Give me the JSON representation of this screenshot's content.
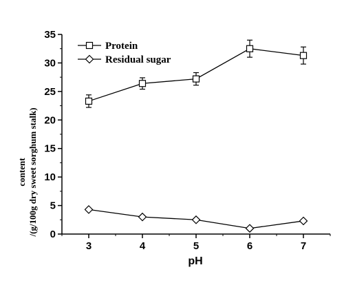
{
  "chart_data": {
    "type": "line",
    "x": [
      3,
      4,
      5,
      6,
      7
    ],
    "xlabel": "pH",
    "ylabel_line1": "content",
    "ylabel_line2": "/(g/100g dry sweet sorghum stalk)",
    "xlim": [
      2.5,
      7.5
    ],
    "ylim": [
      0,
      35
    ],
    "x_ticks": [
      3,
      4,
      5,
      6,
      7
    ],
    "y_ticks": [
      0,
      5,
      10,
      15,
      20,
      25,
      30,
      35
    ],
    "grid": false,
    "legend_position": "top-left",
    "series": [
      {
        "name": "Protein",
        "marker": "square",
        "values": [
          23.3,
          26.4,
          27.2,
          32.5,
          31.3
        ],
        "errors": [
          1.1,
          1.0,
          1.1,
          1.5,
          1.5
        ]
      },
      {
        "name": "Residual sugar",
        "marker": "diamond",
        "values": [
          4.3,
          3.0,
          2.5,
          1.0,
          2.3
        ]
      }
    ],
    "colors": {
      "line": "#000000",
      "marker_fill": "#ffffff"
    }
  }
}
